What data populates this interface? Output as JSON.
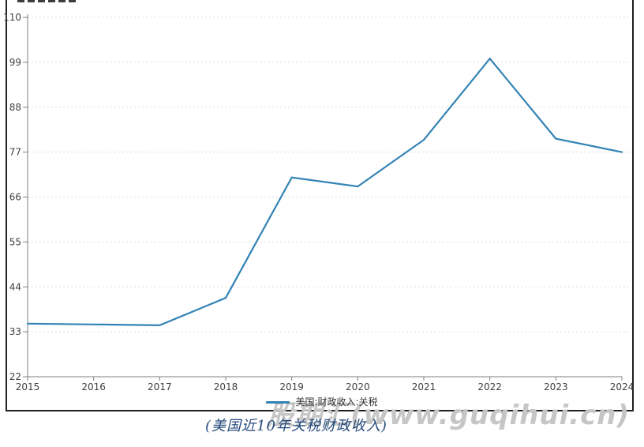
{
  "chart_data": {
    "type": "line",
    "title": "(美国近10年关税财政收入)",
    "categories": [
      "2015",
      "2016",
      "2017",
      "2018",
      "2019",
      "2020",
      "2021",
      "2022",
      "2023",
      "2024"
    ],
    "series": [
      {
        "name": "美国:财政收入:关税",
        "color": "#3383b5",
        "values": [
          35.0,
          34.8,
          34.6,
          41.3,
          70.8,
          68.6,
          80.0,
          99.9,
          80.3,
          77.0
        ]
      }
    ],
    "xlabel": "",
    "ylabel": "",
    "ylim": [
      22,
      110
    ],
    "yticks": [
      22,
      33,
      44,
      55,
      66,
      77,
      88,
      99,
      110
    ],
    "grid": "horizontal-dashed",
    "legend_position": "bottom-center"
  },
  "legend": {
    "marker": "line-icon",
    "label": "美国:财政收入:关税"
  },
  "caption": {
    "text": "(美国近10年关税财政收入)"
  },
  "watermark": {
    "text": "股期汇(www.guqihui.cn)"
  },
  "colors": {
    "line": "#3383b5",
    "axis": "#7f7f7f",
    "grid_line": "#dcdcdc",
    "tick_label": "#404040",
    "legend_text": "#333333",
    "caption_text": "#24497c",
    "watermark_text": "#c6c6c6",
    "frame_border": "#1f1f1f"
  }
}
